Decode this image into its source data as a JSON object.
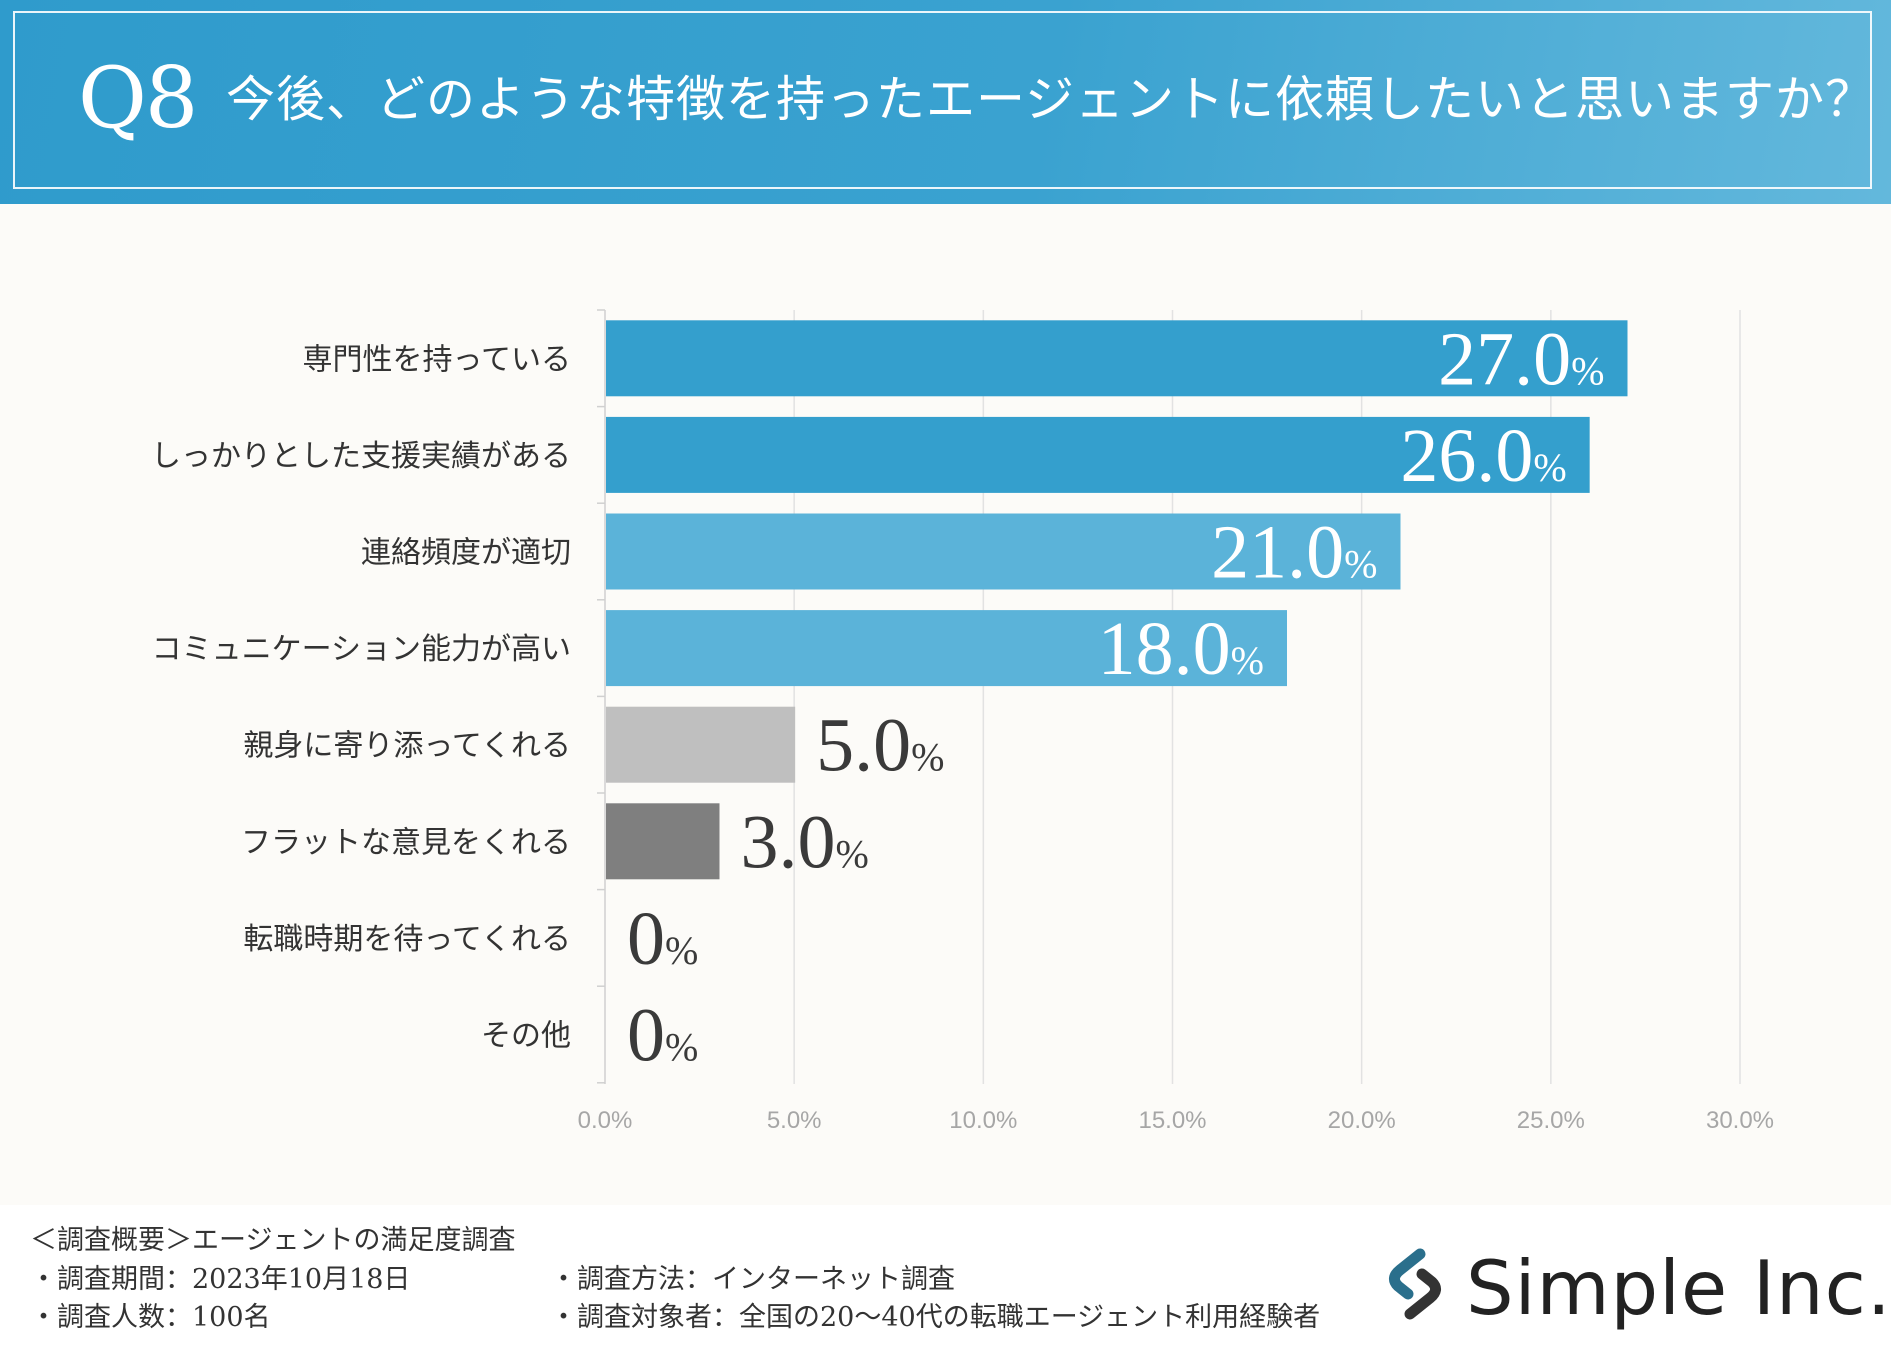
{
  "header": {
    "q_number": "Q8",
    "question": "今後、どのような特徴を持ったエージェントに依頼したいと思いますか？"
  },
  "chart_data": {
    "type": "bar",
    "orientation": "horizontal",
    "title": "今後、どのような特徴を持ったエージェントに依頼したいと思いますか？",
    "categories": [
      "専門性を持っている",
      "しっかりとした支援実績がある",
      "連絡頻度が適切",
      "コミュニケーション能力が高い",
      "親身に寄り添ってくれる",
      "フラットな意見をくれる",
      "転職時期を待ってくれる",
      "その他"
    ],
    "values": [
      27.0,
      26.0,
      21.0,
      18.0,
      5.0,
      3.0,
      0,
      0
    ],
    "value_labels": [
      "27.0",
      "26.0",
      "21.0",
      "18.0",
      "5.0",
      "3.0",
      "0",
      "0"
    ],
    "value_unit": "%",
    "bar_colors": [
      "#349fcd",
      "#349fcd",
      "#5bb3d9",
      "#5bb3d9",
      "#bfbfbf",
      "#7f7f7f",
      "#7f7f7f",
      "#7f7f7f"
    ],
    "xlim": [
      0,
      30
    ],
    "x_ticks": [
      "0.0%",
      "5.0%",
      "10.0%",
      "15.0%",
      "20.0%",
      "25.0%",
      "30.0%"
    ],
    "grid": true
  },
  "footer": {
    "survey_title": "＜調査概要＞エージェントの満足度調査",
    "period": "・調査期間：2023年10月18日",
    "count": "・調査人数：100名",
    "method": "・調査方法：インターネット調査",
    "target": "・調査対象者：全国の20〜40代の転職エージェント利用経験者",
    "logo": "Simple Inc."
  },
  "colors": {
    "header_bg": "#3aa2d0",
    "accent": "#349fcd"
  }
}
